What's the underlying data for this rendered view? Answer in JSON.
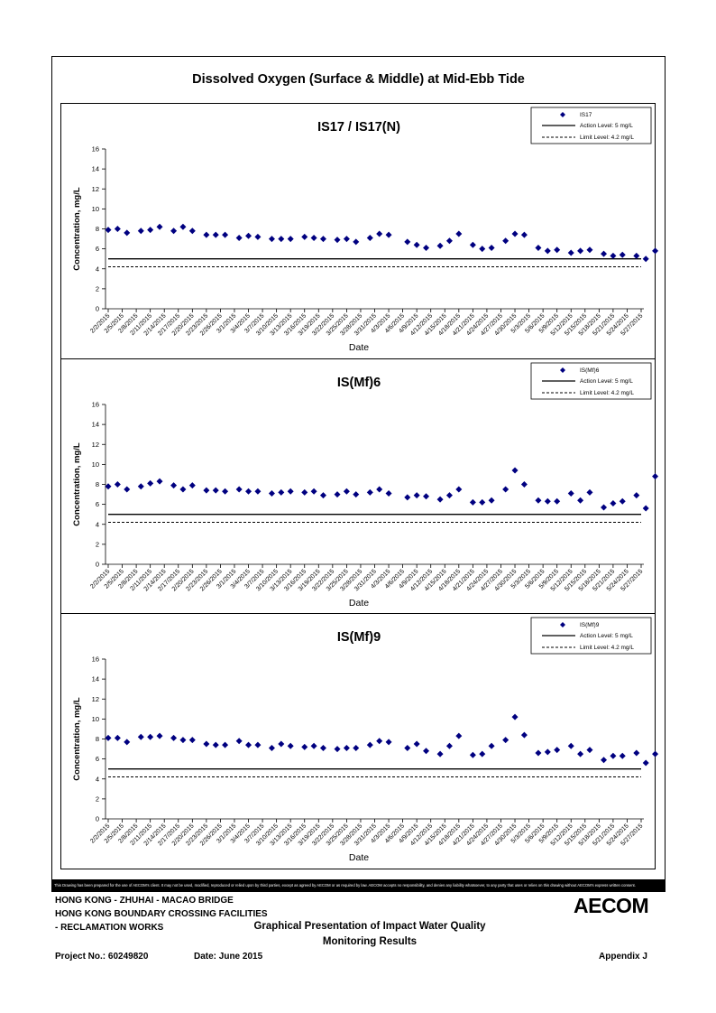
{
  "main_title": "Dissolved Oxygen (Surface & Middle) at Mid-Ebb Tide",
  "dates": [
    "2/2/2015",
    "2/5/2015",
    "2/8/2015",
    "2/11/2015",
    "2/14/2015",
    "2/17/2015",
    "2/20/2015",
    "2/23/2015",
    "2/26/2015",
    "3/1/2015",
    "3/4/2015",
    "3/7/2015",
    "3/10/2015",
    "3/13/2015",
    "3/16/2015",
    "3/19/2015",
    "3/22/2015",
    "3/25/2015",
    "3/28/2015",
    "3/31/2015",
    "4/3/2015",
    "4/6/2015",
    "4/9/2015",
    "4/12/2015",
    "4/15/2015",
    "4/18/2015",
    "4/21/2015",
    "4/24/2015",
    "4/27/2015",
    "4/30/2015",
    "5/3/2015",
    "5/6/2015",
    "5/9/2015",
    "5/12/2015",
    "5/15/2015",
    "5/18/2015",
    "5/21/2015",
    "5/24/2015",
    "5/27/2015"
  ],
  "chart_data": [
    {
      "type": "scatter",
      "title": "IS17 / IS17(N)",
      "xlabel": "Date",
      "ylabel": "Concentration, mg/L",
      "ylim": [
        0,
        16
      ],
      "yticks": [
        "0",
        "2",
        "4",
        "6",
        "8",
        "10",
        "12",
        "14",
        "16"
      ],
      "legend": {
        "series": "IS17",
        "action": "Action Level: 5 mg/L",
        "limit": "Limit Level: 4.2 mg/L",
        "position": "top-right"
      },
      "action_level": 5,
      "limit_level": 4.2,
      "x": [
        "2/2/2015",
        "2/4/2015",
        "2/6/2015",
        "2/9/2015",
        "2/11/2015",
        "2/13/2015",
        "2/16/2015",
        "2/18/2015",
        "2/20/2015",
        "2/23/2015",
        "2/25/2015",
        "2/27/2015",
        "3/2/2015",
        "3/4/2015",
        "3/6/2015",
        "3/9/2015",
        "3/11/2015",
        "3/13/2015",
        "3/16/2015",
        "3/18/2015",
        "3/20/2015",
        "3/23/2015",
        "3/25/2015",
        "3/27/2015",
        "3/30/2015",
        "4/1/2015",
        "4/3/2015",
        "4/7/2015",
        "4/9/2015",
        "4/11/2015",
        "4/14/2015",
        "4/16/2015",
        "4/18/2015",
        "4/21/2015",
        "4/23/2015",
        "4/25/2015",
        "4/28/2015",
        "4/30/2015",
        "5/2/2015",
        "5/5/2015",
        "5/7/2015",
        "5/9/2015",
        "5/12/2015",
        "5/14/2015",
        "5/16/2015",
        "5/19/2015",
        "5/21/2015",
        "5/23/2015",
        "5/26/2015",
        "5/28/2015",
        "5/30/2015"
      ],
      "y": [
        7.9,
        8.0,
        7.6,
        7.8,
        7.9,
        8.2,
        7.8,
        8.2,
        7.8,
        7.4,
        7.4,
        7.4,
        7.1,
        7.3,
        7.2,
        7.0,
        7.0,
        7.0,
        7.2,
        7.1,
        7.0,
        6.9,
        7.0,
        6.7,
        7.1,
        7.5,
        7.4,
        6.7,
        6.4,
        6.1,
        6.3,
        6.8,
        7.5,
        6.4,
        6.0,
        6.1,
        6.8,
        7.5,
        7.4,
        6.1,
        5.8,
        5.9,
        5.6,
        5.8,
        5.9,
        5.5,
        5.3,
        5.4,
        5.3,
        5.0,
        5.8
      ]
    },
    {
      "type": "scatter",
      "title": "IS(Mf)6",
      "xlabel": "Date",
      "ylabel": "Concentration, mg/L",
      "ylim": [
        0,
        16
      ],
      "yticks": [
        "0",
        "2",
        "4",
        "6",
        "8",
        "10",
        "12",
        "14",
        "16"
      ],
      "legend": {
        "series": "IS(Mf)6",
        "action": "Action Level: 5 mg/L",
        "limit": "Limit Level: 4.2 mg/L",
        "position": "top-right"
      },
      "action_level": 5,
      "limit_level": 4.2,
      "x": [
        "2/2/2015",
        "2/4/2015",
        "2/6/2015",
        "2/9/2015",
        "2/11/2015",
        "2/13/2015",
        "2/16/2015",
        "2/18/2015",
        "2/20/2015",
        "2/23/2015",
        "2/25/2015",
        "2/27/2015",
        "3/2/2015",
        "3/4/2015",
        "3/6/2015",
        "3/9/2015",
        "3/11/2015",
        "3/13/2015",
        "3/16/2015",
        "3/18/2015",
        "3/20/2015",
        "3/23/2015",
        "3/25/2015",
        "3/27/2015",
        "3/30/2015",
        "4/1/2015",
        "4/3/2015",
        "4/7/2015",
        "4/9/2015",
        "4/11/2015",
        "4/14/2015",
        "4/16/2015",
        "4/18/2015",
        "4/21/2015",
        "4/23/2015",
        "4/25/2015",
        "4/28/2015",
        "4/30/2015",
        "5/2/2015",
        "5/5/2015",
        "5/7/2015",
        "5/9/2015",
        "5/12/2015",
        "5/14/2015",
        "5/16/2015",
        "5/19/2015",
        "5/21/2015",
        "5/23/2015",
        "5/26/2015",
        "5/28/2015",
        "5/30/2015"
      ],
      "y": [
        7.8,
        8.0,
        7.5,
        7.8,
        8.1,
        8.3,
        7.9,
        7.5,
        7.9,
        7.4,
        7.4,
        7.3,
        7.5,
        7.3,
        7.3,
        7.1,
        7.2,
        7.3,
        7.2,
        7.3,
        6.9,
        7.0,
        7.3,
        7.0,
        7.2,
        7.5,
        7.1,
        6.7,
        6.9,
        6.8,
        6.5,
        6.9,
        7.5,
        6.2,
        6.2,
        6.4,
        7.5,
        9.4,
        8.0,
        6.4,
        6.3,
        6.3,
        7.1,
        6.4,
        7.2,
        5.7,
        6.1,
        6.3,
        6.9,
        5.6,
        8.8
      ]
    },
    {
      "type": "scatter",
      "title": "IS(Mf)9",
      "xlabel": "Date",
      "ylabel": "Concentration, mg/L",
      "ylim": [
        0,
        16
      ],
      "yticks": [
        "0",
        "2",
        "4",
        "6",
        "8",
        "10",
        "12",
        "14",
        "16"
      ],
      "legend": {
        "series": "IS(Mf)9",
        "action": "Action Level: 5 mg/L",
        "limit": "Limit Level: 4.2 mg/L",
        "position": "top-right"
      },
      "action_level": 5,
      "limit_level": 4.2,
      "x": [
        "2/2/2015",
        "2/4/2015",
        "2/6/2015",
        "2/9/2015",
        "2/11/2015",
        "2/13/2015",
        "2/16/2015",
        "2/18/2015",
        "2/20/2015",
        "2/23/2015",
        "2/25/2015",
        "2/27/2015",
        "3/2/2015",
        "3/4/2015",
        "3/6/2015",
        "3/9/2015",
        "3/11/2015",
        "3/13/2015",
        "3/16/2015",
        "3/18/2015",
        "3/20/2015",
        "3/23/2015",
        "3/25/2015",
        "3/27/2015",
        "3/30/2015",
        "4/1/2015",
        "4/3/2015",
        "4/7/2015",
        "4/9/2015",
        "4/11/2015",
        "4/14/2015",
        "4/16/2015",
        "4/18/2015",
        "4/21/2015",
        "4/23/2015",
        "4/25/2015",
        "4/28/2015",
        "4/30/2015",
        "5/2/2015",
        "5/5/2015",
        "5/7/2015",
        "5/9/2015",
        "5/12/2015",
        "5/14/2015",
        "5/16/2015",
        "5/19/2015",
        "5/21/2015",
        "5/23/2015",
        "5/26/2015",
        "5/28/2015",
        "5/30/2015"
      ],
      "y": [
        8.1,
        8.1,
        7.7,
        8.2,
        8.2,
        8.3,
        8.1,
        7.9,
        7.9,
        7.5,
        7.4,
        7.4,
        7.8,
        7.4,
        7.4,
        7.1,
        7.5,
        7.3,
        7.2,
        7.3,
        7.1,
        7.0,
        7.1,
        7.1,
        7.4,
        7.8,
        7.7,
        7.1,
        7.5,
        6.8,
        6.5,
        7.3,
        8.3,
        6.4,
        6.5,
        7.3,
        7.9,
        10.2,
        8.4,
        6.6,
        6.7,
        6.9,
        7.3,
        6.5,
        6.9,
        5.9,
        6.3,
        6.3,
        6.6,
        5.6,
        6.5
      ]
    }
  ],
  "colors": {
    "marker": "#000080",
    "line": "#000000"
  },
  "disclaimer": "This Drawing has been prepared for the use of AECOM's client. It may not be used, modified, reproduced or relied upon by third parties, except as agreed by AECOM or as required by law. AECOM accepts no responsibility, and denies any liability whatsoever, to any party that uses or relies on this drawing without AECOM's express written consent.",
  "footer": {
    "line1": "HONG KONG - ZHUHAI - MACAO BRIDGE",
    "line2": "HONG KONG BOUNDARY CROSSING FACILITIES",
    "line3": "- RECLAMATION WORKS",
    "center_title_1": "Graphical Presentation of Impact Water Quality",
    "center_title_2": "Monitoring Results",
    "project": "Project No.: 60249820",
    "date": "Date: June 2015",
    "appendix": "Appendix J",
    "logo": "AECOM"
  }
}
